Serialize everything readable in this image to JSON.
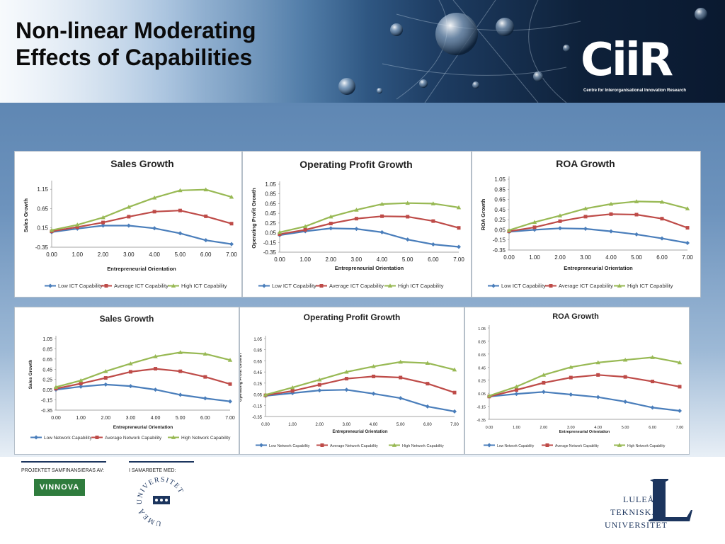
{
  "slide": {
    "title_line1": "Non-linear Moderating",
    "title_line2": "Effects of Capabilities"
  },
  "logos": {
    "ciir": "CiiR",
    "ciir_subtitle": "Centre for Interorganisational Innovation Research",
    "financed_label": "PROJEKTET SAMFINANSIERAS AV:",
    "cooperation_label": "I SAMARBETE MED:",
    "vinnova": "VINNOVA",
    "umea_ring": "UMEÅ UNIVERSITET",
    "ltu_line1": "LULEÅ",
    "ltu_line2": "TEKNISKA",
    "ltu_line3": "UNIVERSITET"
  },
  "colors": {
    "low": "#4a7ebb",
    "average": "#be4b48",
    "high": "#98b954",
    "title_text": "#0b0b0b",
    "navy": "#1c355e",
    "vinnova_green": "#2f7c3d"
  },
  "chart_data": [
    {
      "type": "line",
      "title": "Sales Growth",
      "xlabel": "Entrepreneurial Orientation",
      "ylabel": "Sales Growth",
      "x": [
        0,
        1,
        2,
        3,
        4,
        5,
        6,
        7
      ],
      "x_ticks": [
        "0.00",
        "1.00",
        "2.00",
        "3.00",
        "4.00",
        "5.00",
        "6.00",
        "7.00"
      ],
      "y_ticks": [
        "1.15",
        "0.65",
        "0.15",
        "-0.35"
      ],
      "ylim": [
        -0.35,
        1.3
      ],
      "legend_position": "bottom",
      "series": [
        {
          "name": "Low ICT Capability",
          "color": "low",
          "values": [
            0.04,
            0.13,
            0.21,
            0.21,
            0.14,
            0.01,
            -0.17,
            -0.27
          ]
        },
        {
          "name": "Average ICT Capability",
          "color": "average",
          "values": [
            0.06,
            0.17,
            0.29,
            0.44,
            0.57,
            0.6,
            0.45,
            0.26
          ]
        },
        {
          "name": "High ICT Capability",
          "color": "high",
          "values": [
            0.09,
            0.23,
            0.42,
            0.69,
            0.93,
            1.12,
            1.14,
            0.95
          ]
        }
      ]
    },
    {
      "type": "line",
      "title": "Operating Profit Growth",
      "xlabel": "Entrepreneurial Orientation",
      "ylabel": "Operating Profit Growth",
      "x": [
        0,
        1,
        2,
        3,
        4,
        5,
        6,
        7
      ],
      "x_ticks": [
        "0.00",
        "1.00",
        "2.00",
        "3.00",
        "4.00",
        "5.00",
        "6.00",
        "7.00"
      ],
      "y_ticks": [
        "1.05",
        "0.85",
        "0.65",
        "0.45",
        "0.25",
        "0.05",
        "-0.15",
        "-0.35"
      ],
      "ylim": [
        -0.35,
        1.05
      ],
      "legend_position": "bottom",
      "series": [
        {
          "name": "Low ICT Capability",
          "color": "low",
          "values": [
            0.0,
            0.08,
            0.14,
            0.13,
            0.06,
            -0.09,
            -0.19,
            -0.24
          ]
        },
        {
          "name": "Average ICT Capability",
          "color": "average",
          "values": [
            0.02,
            0.11,
            0.24,
            0.34,
            0.39,
            0.38,
            0.29,
            0.15
          ]
        },
        {
          "name": "High ICT Capability",
          "color": "high",
          "values": [
            0.06,
            0.18,
            0.38,
            0.52,
            0.64,
            0.66,
            0.65,
            0.57
          ]
        }
      ]
    },
    {
      "type": "line",
      "title": "ROA Growth",
      "xlabel": "Entrepreneurial Orientation",
      "ylabel": "ROA Growth",
      "x": [
        0,
        1,
        2,
        3,
        4,
        5,
        6,
        7
      ],
      "x_ticks": [
        "0.00",
        "1.00",
        "2.00",
        "3.00",
        "4.00",
        "5.00",
        "6.00",
        "7.00"
      ],
      "y_ticks": [
        "1.05",
        "0.85",
        "0.65",
        "0.45",
        "0.25",
        "0.05",
        "-0.15",
        "-0.35"
      ],
      "ylim": [
        -0.35,
        1.05
      ],
      "legend_position": "bottom",
      "series": [
        {
          "name": "Low ICT Capability",
          "color": "low",
          "values": [
            0.01,
            0.05,
            0.08,
            0.07,
            0.02,
            -0.04,
            -0.12,
            -0.21
          ]
        },
        {
          "name": "Average ICT Capability",
          "color": "average",
          "values": [
            0.02,
            0.1,
            0.22,
            0.31,
            0.36,
            0.35,
            0.27,
            0.09
          ]
        },
        {
          "name": "High ICT Capability",
          "color": "high",
          "values": [
            0.04,
            0.2,
            0.33,
            0.47,
            0.56,
            0.61,
            0.6,
            0.47
          ]
        }
      ]
    },
    {
      "type": "line",
      "title": "Sales Growth",
      "xlabel": "Entrepreneurial Orientation",
      "ylabel": "Sales Growth",
      "x": [
        0,
        1,
        2,
        3,
        4,
        5,
        6,
        7
      ],
      "x_ticks": [
        "0.00",
        "1.00",
        "2.00",
        "3.00",
        "4.00",
        "5.00",
        "6.00",
        "7.00"
      ],
      "y_ticks": [
        "1.05",
        "0.85",
        "0.65",
        "0.45",
        "0.25",
        "0.05",
        "-0.15",
        "-0.35"
      ],
      "ylim": [
        -0.35,
        1.05
      ],
      "legend_position": "bottom",
      "series": [
        {
          "name": "Low Network Capability",
          "color": "low",
          "values": [
            0.05,
            0.11,
            0.15,
            0.12,
            0.05,
            -0.05,
            -0.12,
            -0.18
          ]
        },
        {
          "name": "Average Network Capability",
          "color": "average",
          "values": [
            0.07,
            0.17,
            0.28,
            0.4,
            0.46,
            0.41,
            0.3,
            0.16
          ]
        },
        {
          "name": "High Network Capability",
          "color": "high",
          "values": [
            0.1,
            0.23,
            0.41,
            0.56,
            0.7,
            0.78,
            0.75,
            0.63
          ]
        }
      ]
    },
    {
      "type": "line",
      "title": "Operating Profit Growth",
      "xlabel": "Entrepreneurial Orientation",
      "ylabel": "Operating Profit Growth",
      "x": [
        0,
        1,
        2,
        3,
        4,
        5,
        6,
        7
      ],
      "x_ticks": [
        "0.00",
        "1.00",
        "2.00",
        "3.00",
        "4.00",
        "5.00",
        "6.00",
        "7.00"
      ],
      "y_ticks": [
        "1.05",
        "0.85",
        "0.65",
        "0.45",
        "0.25",
        "0.05",
        "-0.15",
        "-0.35"
      ],
      "ylim": [
        -0.35,
        1.05
      ],
      "legend_position": "bottom",
      "series": [
        {
          "name": "Low Network Capability",
          "color": "low",
          "values": [
            0.02,
            0.07,
            0.12,
            0.13,
            0.06,
            -0.02,
            -0.17,
            -0.26
          ]
        },
        {
          "name": "Average Network Capability",
          "color": "average",
          "values": [
            0.03,
            0.11,
            0.22,
            0.33,
            0.37,
            0.35,
            0.24,
            0.08
          ]
        },
        {
          "name": "High Network Capability",
          "color": "high",
          "values": [
            0.04,
            0.17,
            0.31,
            0.45,
            0.55,
            0.63,
            0.61,
            0.49
          ]
        }
      ]
    },
    {
      "type": "line",
      "title": "ROA Growth",
      "xlabel": "Entrepreneurial Orientation",
      "ylabel": "ROA Growth",
      "x": [
        0,
        1,
        2,
        3,
        4,
        5,
        6,
        7
      ],
      "x_ticks": [
        "0.00",
        "1.00",
        "2.00",
        "3.00",
        "4.00",
        "5.00",
        "6.00",
        "7.00"
      ],
      "y_ticks": [
        "1.05",
        "0.85",
        "0.65",
        "0.45",
        "0.25",
        "0.05",
        "-0.15",
        "-0.35"
      ],
      "ylim": [
        -0.35,
        1.05
      ],
      "legend_position": "bottom",
      "series": [
        {
          "name": "Low Network Capability",
          "color": "low",
          "values": [
            0.0,
            0.04,
            0.07,
            0.03,
            -0.01,
            -0.08,
            -0.17,
            -0.22
          ]
        },
        {
          "name": "Average Network Capability",
          "color": "average",
          "values": [
            0.0,
            0.1,
            0.21,
            0.29,
            0.33,
            0.3,
            0.23,
            0.15
          ]
        },
        {
          "name": "High Network Capability",
          "color": "high",
          "values": [
            0.01,
            0.15,
            0.33,
            0.45,
            0.52,
            0.56,
            0.6,
            0.52
          ]
        }
      ]
    }
  ]
}
